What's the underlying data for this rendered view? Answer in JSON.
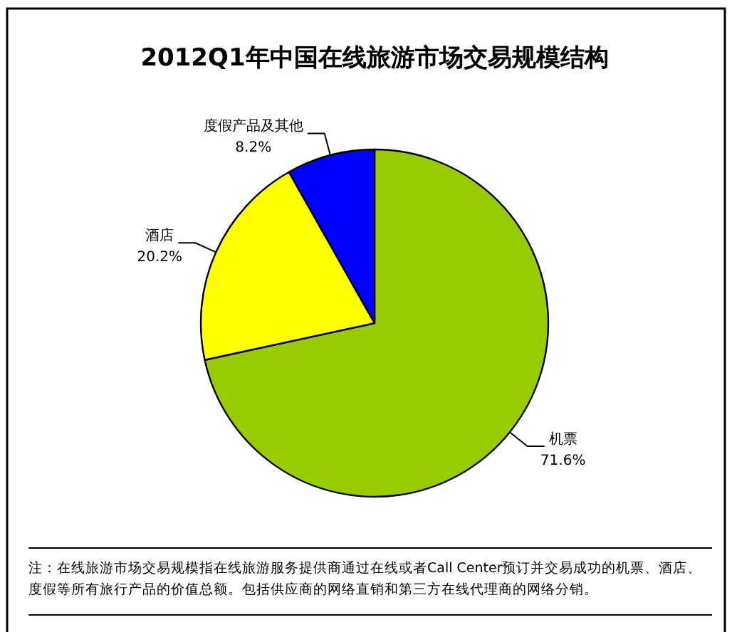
{
  "chart_data": {
    "type": "pie",
    "title": "2012Q1年中国在线旅游市场交易规模结构",
    "categories": [
      "机票",
      "酒店",
      "度假产品及其他"
    ],
    "values": [
      71.6,
      20.2,
      8.2
    ],
    "colors": [
      "#99cc00",
      "#ffff00",
      "#0000ff"
    ],
    "value_labels": [
      "71.6%",
      "20.2%",
      "8.2%"
    ],
    "annotations": [
      "注：在线旅游市场交易规模指在线旅游服务提供商通过在线或者Call Center预订并交易成功的机票、酒店、度假等所有旅行产品的价值总额。包括供应商的网络直销和第三方在线代理商的网络分销。"
    ]
  }
}
